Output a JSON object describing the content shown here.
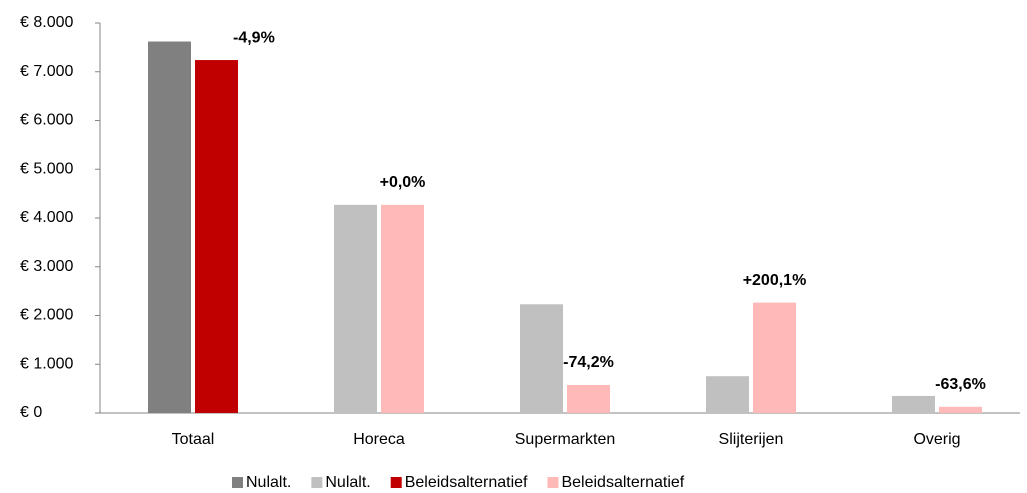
{
  "chart_data": {
    "type": "bar",
    "categories": [
      "Totaal",
      "Horeca",
      "Supermarkten",
      "Slijterijen",
      "Overig"
    ],
    "series": [
      {
        "name": "Nulalt.",
        "color": "#808080",
        "values": [
          7620,
          null,
          null,
          null,
          null
        ]
      },
      {
        "name": "Nulalt.",
        "color": "#c0c0c0",
        "values": [
          null,
          4270,
          2230,
          755,
          350
        ]
      },
      {
        "name": "Beleidsalternatief",
        "color": "#c00000",
        "values": [
          7240,
          null,
          null,
          null,
          null
        ]
      },
      {
        "name": "Beleidsalternatief",
        "color": "#ffb9b9",
        "values": [
          null,
          4270,
          575,
          2265,
          127
        ]
      }
    ],
    "annotations": [
      "-4,9%",
      "+0,0%",
      "-74,2%",
      "+200,1%",
      "-63,6%"
    ],
    "ylim": [
      0,
      8000
    ],
    "yticks": [
      {
        "value": 0,
        "label": "€ 0"
      },
      {
        "value": 1000,
        "label": "€ 1.000"
      },
      {
        "value": 2000,
        "label": "€ 2.000"
      },
      {
        "value": 3000,
        "label": "€ 3.000"
      },
      {
        "value": 4000,
        "label": "€ 4.000"
      },
      {
        "value": 5000,
        "label": "€ 5.000"
      },
      {
        "value": 6000,
        "label": "€ 6.000"
      },
      {
        "value": 7000,
        "label": "€ 7.000"
      },
      {
        "value": 8000,
        "label": "€ 8.000"
      }
    ],
    "grid": false,
    "legend": "bottom"
  }
}
